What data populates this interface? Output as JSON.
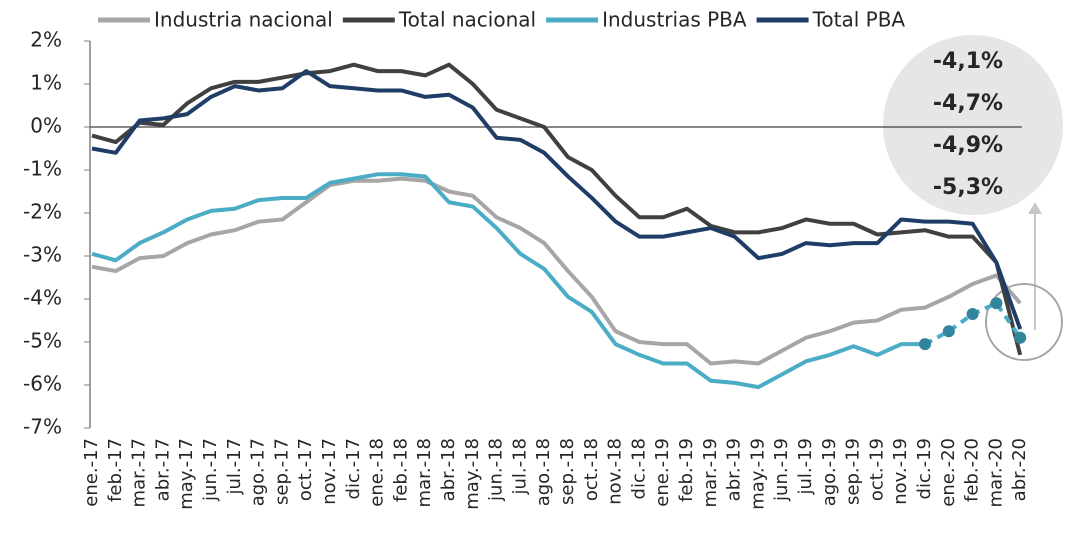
{
  "chart_data": {
    "type": "line",
    "categories": [
      "ene.-17",
      "feb.-17",
      "mar.-17",
      "abr.-17",
      "may.-17",
      "jun.-17",
      "jul.-17",
      "ago.-17",
      "sep.-17",
      "oct.-17",
      "nov.-17",
      "dic.-17",
      "ene.-18",
      "feb.-18",
      "mar.-18",
      "abr.-18",
      "may.-18",
      "jun.-18",
      "jul.-18",
      "ago.-18",
      "sep.-18",
      "oct.-18",
      "nov.-18",
      "dic.-18",
      "ene.-19",
      "feb.-19",
      "mar.-19",
      "abr.-19",
      "may.-19",
      "jun.-19",
      "jul.-19",
      "ago.-19",
      "sep.-19",
      "oct.-19",
      "nov.-19",
      "dic.-19",
      "ene.-20",
      "feb.-20",
      "mar.-20",
      "abr.-20"
    ],
    "series": [
      {
        "name": "Industria nacional",
        "color": "#a6a6a6",
        "values": [
          -3.25,
          -3.35,
          -3.05,
          -3.0,
          -2.7,
          -2.5,
          -2.4,
          -2.2,
          -2.15,
          -1.75,
          -1.35,
          -1.25,
          -1.25,
          -1.2,
          -1.25,
          -1.5,
          -1.6,
          -2.1,
          -2.35,
          -2.7,
          -3.35,
          -3.95,
          -4.75,
          -5.0,
          -5.05,
          -5.05,
          -5.5,
          -5.45,
          -5.5,
          -5.2,
          -4.9,
          -4.75,
          -4.55,
          -4.5,
          -4.25,
          -4.2,
          -3.95,
          -3.65,
          -3.45,
          -4.1
        ]
      },
      {
        "name": "Total nacional",
        "color": "#404040",
        "values": [
          -0.2,
          -0.35,
          0.1,
          0.05,
          0.55,
          0.9,
          1.05,
          1.05,
          1.15,
          1.25,
          1.3,
          1.45,
          1.3,
          1.3,
          1.2,
          1.45,
          1.0,
          0.4,
          0.2,
          0.0,
          -0.7,
          -1.0,
          -1.6,
          -2.1,
          -2.1,
          -1.9,
          -2.3,
          -2.45,
          -2.45,
          -2.35,
          -2.15,
          -2.25,
          -2.25,
          -2.5,
          -2.45,
          -2.4,
          -2.55,
          -2.55,
          -3.15,
          -5.3
        ]
      },
      {
        "name": "Industrias PBA",
        "color": "#4bacc6",
        "values": [
          -2.95,
          -3.1,
          -2.7,
          -2.45,
          -2.15,
          -1.95,
          -1.9,
          -1.7,
          -1.65,
          -1.65,
          -1.3,
          -1.2,
          -1.1,
          -1.1,
          -1.15,
          -1.75,
          -1.85,
          -2.35,
          -2.95,
          -3.3,
          -3.95,
          -4.3,
          -5.05,
          -5.3,
          -5.5,
          -5.5,
          -5.9,
          -5.95,
          -6.05,
          -5.75,
          -5.45,
          -5.3,
          -5.1,
          -5.3,
          -5.05,
          -5.05,
          -4.75,
          -4.35,
          -4.1,
          -4.9
        ]
      },
      {
        "name": "Total PBA",
        "color": "#1f3d66",
        "values": [
          -0.5,
          -0.6,
          0.15,
          0.2,
          0.3,
          0.7,
          0.95,
          0.85,
          0.9,
          1.3,
          0.95,
          0.9,
          0.85,
          0.85,
          0.7,
          0.75,
          0.45,
          -0.25,
          -0.3,
          -0.6,
          -1.15,
          -1.65,
          -2.2,
          -2.55,
          -2.55,
          -2.45,
          -2.35,
          -2.55,
          -3.05,
          -2.95,
          -2.7,
          -2.75,
          -2.7,
          -2.7,
          -2.15,
          -2.2,
          -2.2,
          -2.25,
          -3.15,
          -4.7
        ]
      }
    ],
    "ylim": [
      -7,
      2
    ],
    "yticks": [
      {
        "value": -7,
        "label": "-7%"
      },
      {
        "value": -6,
        "label": "-6%"
      },
      {
        "value": -5,
        "label": "-5%"
      },
      {
        "value": -4,
        "label": "-4%"
      },
      {
        "value": -3,
        "label": "-3%"
      },
      {
        "value": -2,
        "label": "-2%"
      },
      {
        "value": -1,
        "label": "-1%"
      },
      {
        "value": 0,
        "label": "0%"
      },
      {
        "value": 1,
        "label": "1%"
      },
      {
        "value": 2,
        "label": "2%"
      }
    ],
    "legend": "top",
    "annotations": [
      {
        "text": "-4,1%",
        "color": "#8c8c8c"
      },
      {
        "text": "-4,7%",
        "color": "#1f3d66"
      },
      {
        "text": "-4,9%",
        "color": "#31859c"
      },
      {
        "text": "-5,3%",
        "color": "#262626"
      }
    ]
  }
}
